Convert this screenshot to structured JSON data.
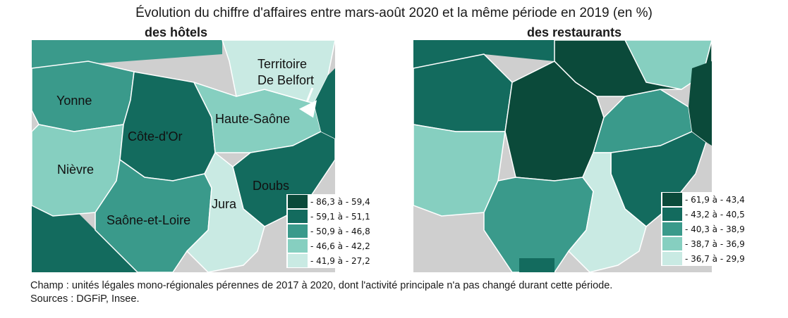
{
  "title": "Évolution du chiffre d'affaires entre mars-août 2020 et la même période en 2019 (en %)",
  "map_hotels": {
    "subtitle": "des hôtels",
    "labels": {
      "yonne": "Yonne",
      "cote_dor": "Côte-d'Or",
      "nievre": "Nièvre",
      "saone_et_loire": "Saône-et-Loire",
      "jura": "Jura",
      "doubs": "Doubs",
      "haute_saone": "Haute-Saône",
      "territoire_line1": "Territoire",
      "territoire_line2": "De Belfort"
    },
    "legend": [
      {
        "label": "- 86,3 à - 59,4",
        "color": "#0b4a3a"
      },
      {
        "label": "- 59,1 à - 51,1",
        "color": "#136b5e"
      },
      {
        "label": "- 50,9 à - 46,8",
        "color": "#3a9a8b"
      },
      {
        "label": "- 46,6 à - 42,2",
        "color": "#86cfc0"
      },
      {
        "label": "- 41,9 à - 27,2",
        "color": "#c9eae3"
      }
    ]
  },
  "map_restaurants": {
    "subtitle": "des restaurants",
    "legend": [
      {
        "label": "- 61,9 à - 43,4",
        "color": "#0b4a3a"
      },
      {
        "label": "- 43,2 à - 40,5",
        "color": "#136b5e"
      },
      {
        "label": "- 40,3 à - 38,9",
        "color": "#3a9a8b"
      },
      {
        "label": "- 38,7 à - 36,9",
        "color": "#86cfc0"
      },
      {
        "label": "- 36,7 à - 29,9",
        "color": "#c9eae3"
      }
    ]
  },
  "footnote_champ": "Champ : unités légales mono-régionales pérennes de 2017 à 2020, dont l'activité principale n'a pas changé durant cette période.",
  "footnote_sources": "Sources : DGFiP, Insee."
}
